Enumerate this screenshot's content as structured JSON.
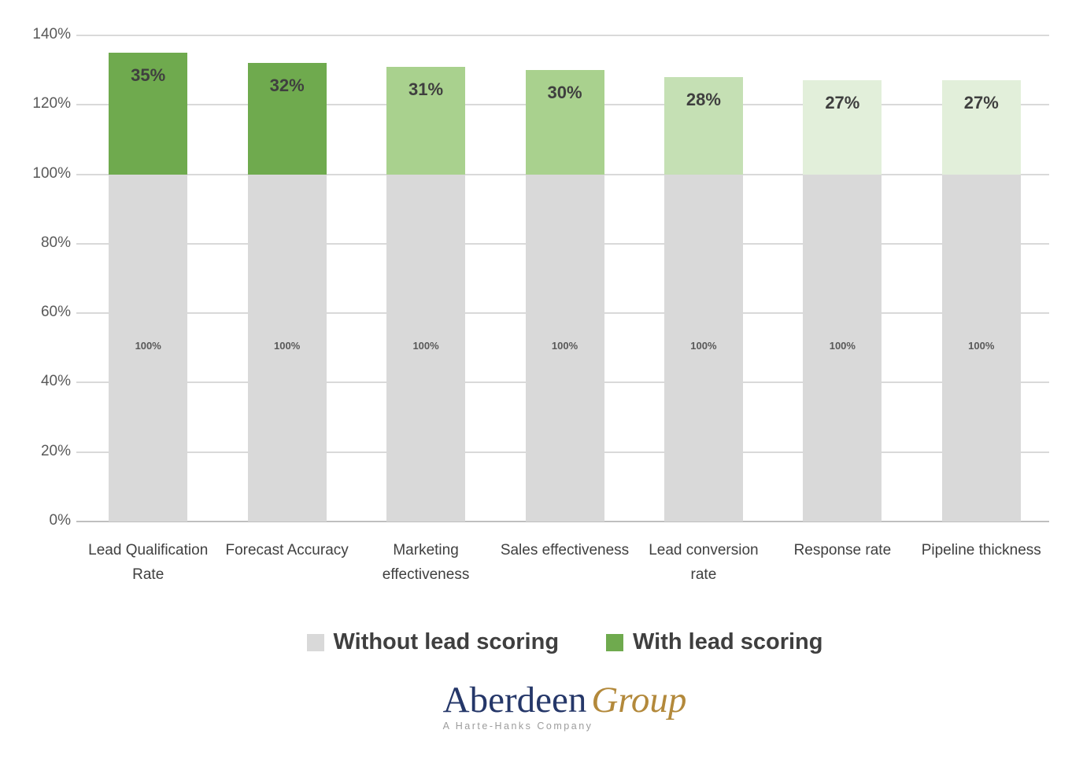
{
  "chart_data": {
    "type": "bar",
    "stacked": true,
    "categories": [
      "Lead Qualification Rate",
      "Forecast Accuracy",
      "Marketing effectiveness",
      "Sales effectiveness",
      "Lead conversion rate",
      "Response rate",
      "Pipeline thickness"
    ],
    "series": [
      {
        "name": "Without lead scoring",
        "values": [
          100,
          100,
          100,
          100,
          100,
          100,
          100
        ],
        "bar_labels": [
          "100%",
          "100%",
          "100%",
          "100%",
          "100%",
          "100%",
          "100%"
        ],
        "colors": [
          "#d9d9d9",
          "#d9d9d9",
          "#d9d9d9",
          "#d9d9d9",
          "#d9d9d9",
          "#d9d9d9",
          "#d9d9d9"
        ]
      },
      {
        "name": "With lead scoring",
        "values": [
          35,
          32,
          31,
          30,
          28,
          27,
          27
        ],
        "bar_labels": [
          "35%",
          "32%",
          "31%",
          "30%",
          "28%",
          "27%",
          "27%"
        ],
        "colors": [
          "#6faa4e",
          "#6faa4e",
          "#a9d18e",
          "#a9d18e",
          "#c5e0b4",
          "#e2efda",
          "#e2efda"
        ]
      }
    ],
    "y_axis": {
      "min": 0,
      "max": 140,
      "step": 20,
      "tick_labels": [
        "0%",
        "20%",
        "40%",
        "60%",
        "80%",
        "100%",
        "120%",
        "140%"
      ]
    },
    "legend": {
      "position": "bottom",
      "entries": [
        {
          "label": "Without lead scoring",
          "color": "#d9d9d9"
        },
        {
          "label": "With lead scoring",
          "color": "#6faa4e"
        }
      ]
    },
    "grid": true,
    "gridline_color": "#d9d9d9",
    "axis_line_color": "#bfbfbf"
  },
  "logo": {
    "name_primary": "Aberdeen",
    "name_secondary": "Group",
    "tagline": "A Harte-Hanks Company",
    "primary_color": "#253769",
    "secondary_color": "#b3893b"
  }
}
